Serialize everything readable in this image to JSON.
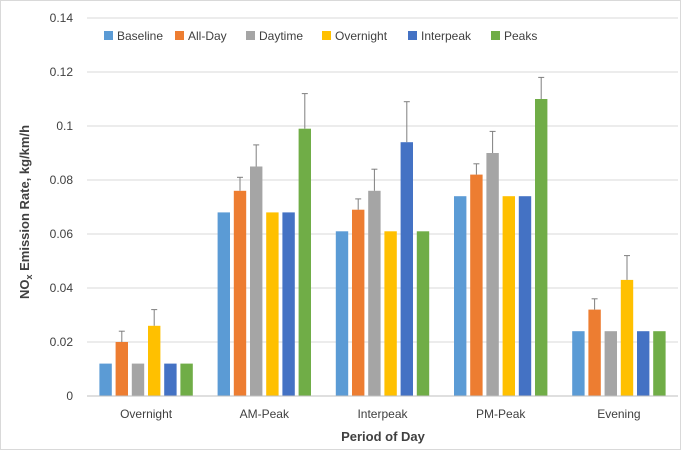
{
  "chart_data": {
    "type": "bar",
    "title": "",
    "xlabel": "Period of Day",
    "ylabel": {
      "prefix": "NO",
      "subscript": "x",
      "suffix": " Emission Rate, kg/km/h"
    },
    "ylim": [
      0,
      0.14
    ],
    "yticks": [
      "0",
      "0.02",
      "0.04",
      "0.06",
      "0.08",
      "0.1",
      "0.12",
      "0.14"
    ],
    "ytick_values": [
      0,
      0.02,
      0.04,
      0.06,
      0.08,
      0.1,
      0.12,
      0.14
    ],
    "grid": true,
    "legend_position": "top",
    "categories": [
      "Overnight",
      "AM-Peak",
      "Interpeak",
      "PM-Peak",
      "Evening"
    ],
    "series": [
      {
        "name": "Baseline",
        "color": "#5B9BD5",
        "values": [
          0.012,
          0.068,
          0.061,
          0.074,
          0.024
        ],
        "errors": [
          null,
          null,
          null,
          null,
          null
        ]
      },
      {
        "name": "All-Day",
        "color": "#ED7D31",
        "values": [
          0.02,
          0.076,
          0.069,
          0.082,
          0.032
        ],
        "errors": [
          0.004,
          0.005,
          0.004,
          0.004,
          0.004
        ]
      },
      {
        "name": "Daytime",
        "color": "#A5A5A5",
        "values": [
          0.012,
          0.085,
          0.076,
          0.09,
          0.024
        ],
        "errors": [
          null,
          0.008,
          0.008,
          0.008,
          null
        ]
      },
      {
        "name": "Overnight",
        "color": "#FFC000",
        "values": [
          0.026,
          0.068,
          0.061,
          0.074,
          0.043
        ],
        "errors": [
          0.006,
          null,
          null,
          null,
          0.009
        ]
      },
      {
        "name": "Interpeak",
        "color": "#4472C4",
        "values": [
          0.012,
          0.068,
          0.094,
          0.074,
          0.024
        ],
        "errors": [
          null,
          null,
          0.015,
          null,
          null
        ]
      },
      {
        "name": "Peaks",
        "color": "#70AD47",
        "values": [
          0.012,
          0.099,
          0.061,
          0.11,
          0.024
        ],
        "errors": [
          null,
          0.013,
          null,
          0.008,
          null
        ]
      }
    ]
  }
}
